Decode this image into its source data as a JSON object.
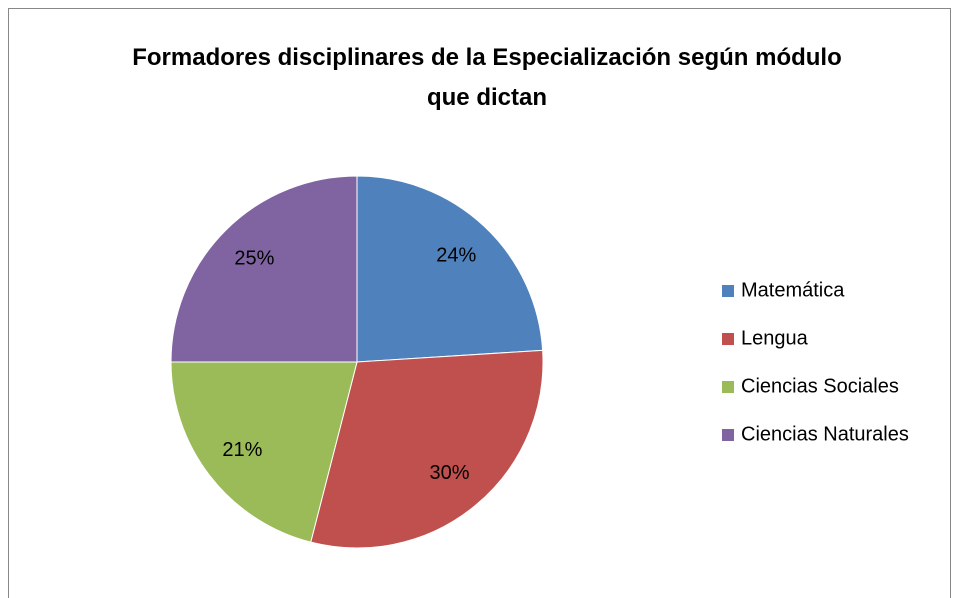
{
  "chart_data": {
    "type": "pie",
    "title": "Formadores disciplinares de la Especialización según módulo que dictan",
    "categories": [
      "Matemática",
      "Lengua",
      "Ciencias Sociales",
      "Ciencias Naturales"
    ],
    "values": [
      24,
      30,
      21,
      25
    ],
    "value_labels": [
      "24%",
      "30%",
      "21%",
      "25%"
    ],
    "colors": [
      "#4f81bd",
      "#c0504d",
      "#9bbb59",
      "#8064a2"
    ],
    "legend": "right"
  }
}
